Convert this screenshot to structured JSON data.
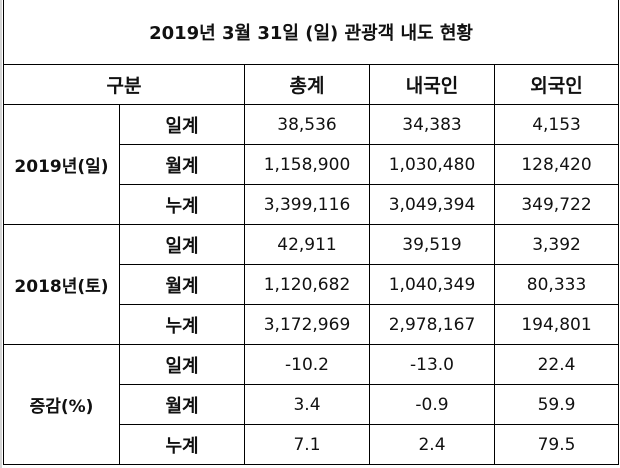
{
  "title": "2019년 3월 31일 (일) 관광객 내도 현황",
  "header": {
    "category": "구분",
    "columns": [
      "총계",
      "내국인",
      "외국인"
    ]
  },
  "groups": [
    {
      "label": "2019년(일)",
      "rows": [
        {
          "label": "일계",
          "values": [
            "38,536",
            "34,383",
            "4,153"
          ]
        },
        {
          "label": "월계",
          "values": [
            "1,158,900",
            "1,030,480",
            "128,420"
          ]
        },
        {
          "label": "누계",
          "values": [
            "3,399,116",
            "3,049,394",
            "349,722"
          ]
        }
      ]
    },
    {
      "label": "2018년(토)",
      "rows": [
        {
          "label": "일계",
          "values": [
            "42,911",
            "39,519",
            "3,392"
          ]
        },
        {
          "label": "월계",
          "values": [
            "1,120,682",
            "1,040,349",
            "80,333"
          ]
        },
        {
          "label": "누계",
          "values": [
            "3,172,969",
            "2,978,167",
            "194,801"
          ]
        }
      ]
    },
    {
      "label": "증감(%)",
      "rows": [
        {
          "label": "일계",
          "values": [
            "-10.2",
            "-13.0",
            "22.4"
          ]
        },
        {
          "label": "월계",
          "values": [
            "3.4",
            "-0.9",
            "59.9"
          ]
        },
        {
          "label": "누계",
          "values": [
            "7.1",
            "2.4",
            "79.5"
          ]
        }
      ]
    }
  ]
}
